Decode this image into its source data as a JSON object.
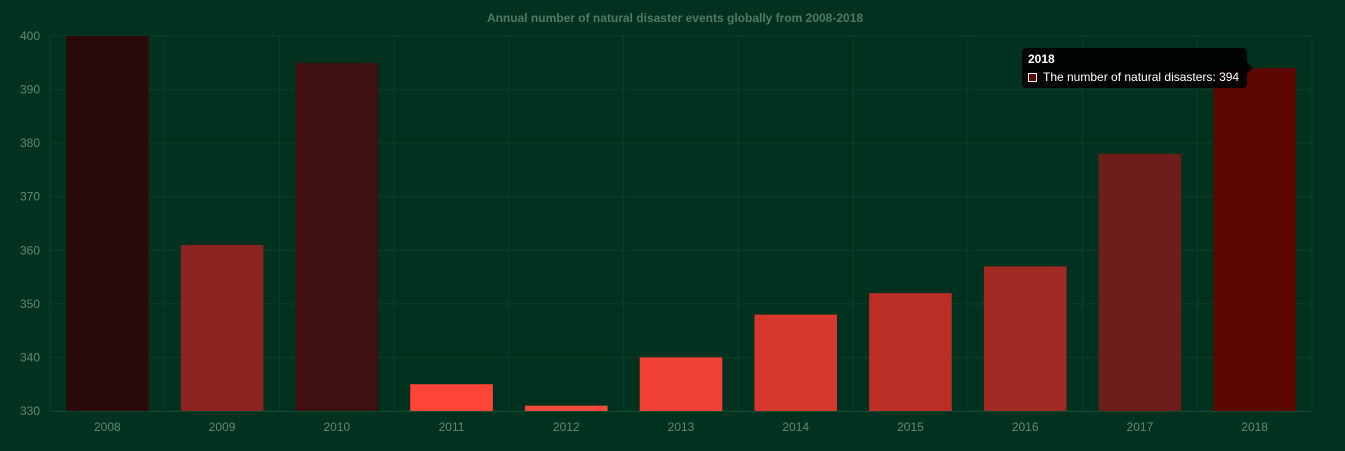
{
  "chart_data": {
    "type": "bar",
    "title": "Annual number of natural disaster events globally from 2008-2018",
    "categories": [
      "2008",
      "2009",
      "2010",
      "2011",
      "2012",
      "2013",
      "2014",
      "2015",
      "2016",
      "2017",
      "2018"
    ],
    "series": [
      {
        "name": "The number of natural disasters",
        "values": [
          400,
          361,
          395,
          335,
          331,
          340,
          348,
          352,
          357,
          378,
          394
        ]
      }
    ],
    "bar_colors": [
      "#2a0a0b",
      "#8b2420",
      "#3f1010",
      "#ff4538",
      "#f44b3d",
      "#f04136",
      "#d6382e",
      "#bc2f27",
      "#a12a25",
      "#6e1d1b",
      "#5c0700"
    ],
    "ylim": [
      330,
      400
    ],
    "yticks": [
      330,
      340,
      350,
      360,
      370,
      380,
      390,
      400
    ],
    "xlabel": "",
    "ylabel": "",
    "grid": true,
    "legend": "none"
  },
  "tooltip": {
    "title": "2018",
    "label": "The number of natural disasters: 394",
    "swatch_color": "#5c0700"
  }
}
